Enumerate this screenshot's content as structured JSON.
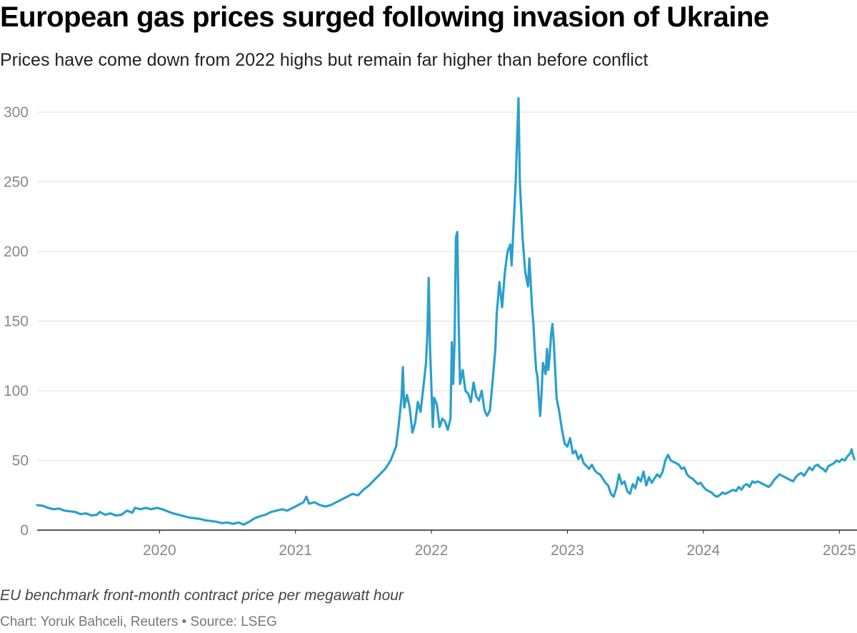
{
  "header": {
    "title": "European gas prices surged following invasion of Ukraine",
    "subtitle": "Prices have come down from 2022 highs but remain far higher than before conflict"
  },
  "footer": {
    "note": "EU benchmark front-month contract price per megawatt hour",
    "credit": "Chart: Yoruk Bahceli, Reuters • Source: LSEG"
  },
  "colors": {
    "line": "#2a9fcd",
    "grid": "#dddddd",
    "axis": "#222222",
    "tick_text": "#888888"
  },
  "chart_data": {
    "type": "line",
    "title": "European gas prices surged following invasion of Ukraine",
    "subtitle": "Prices have come down from 2022 highs but remain far higher than before conflict",
    "xlabel": "",
    "ylabel": "EU benchmark front-month contract price per megawatt hour",
    "x_range": [
      2019.1,
      2025.13
    ],
    "ylim": [
      0,
      300
    ],
    "y_ticks": [
      0,
      50,
      100,
      150,
      200,
      250,
      300
    ],
    "x_ticks": [
      {
        "value": 2020.0,
        "label": "2020"
      },
      {
        "value": 2021.0,
        "label": "2021"
      },
      {
        "value": 2022.0,
        "label": "2022"
      },
      {
        "value": 2023.0,
        "label": "2023"
      },
      {
        "value": 2024.0,
        "label": "2024"
      },
      {
        "value": 2025.0,
        "label": "2025"
      }
    ],
    "grid": true,
    "legend": "none",
    "series": [
      {
        "name": "EU benchmark front-month gas price",
        "points": [
          [
            2019.1,
            18
          ],
          [
            2019.14,
            17.5
          ],
          [
            2019.18,
            16
          ],
          [
            2019.22,
            15
          ],
          [
            2019.26,
            15.5
          ],
          [
            2019.3,
            14
          ],
          [
            2019.34,
            13.5
          ],
          [
            2019.38,
            13
          ],
          [
            2019.42,
            11.5
          ],
          [
            2019.46,
            12
          ],
          [
            2019.5,
            10.5
          ],
          [
            2019.54,
            11
          ],
          [
            2019.56,
            13
          ],
          [
            2019.6,
            11
          ],
          [
            2019.64,
            12
          ],
          [
            2019.68,
            10.5
          ],
          [
            2019.72,
            11
          ],
          [
            2019.76,
            14
          ],
          [
            2019.8,
            12.5
          ],
          [
            2019.82,
            16
          ],
          [
            2019.86,
            15
          ],
          [
            2019.9,
            16
          ],
          [
            2019.94,
            15
          ],
          [
            2019.98,
            16
          ],
          [
            2020.02,
            15
          ],
          [
            2020.06,
            13.5
          ],
          [
            2020.1,
            12
          ],
          [
            2020.14,
            11
          ],
          [
            2020.18,
            10
          ],
          [
            2020.22,
            9
          ],
          [
            2020.26,
            8.5
          ],
          [
            2020.3,
            8
          ],
          [
            2020.34,
            7
          ],
          [
            2020.38,
            6.5
          ],
          [
            2020.42,
            6
          ],
          [
            2020.46,
            5
          ],
          [
            2020.5,
            5.5
          ],
          [
            2020.54,
            4.5
          ],
          [
            2020.58,
            5.5
          ],
          [
            2020.62,
            4
          ],
          [
            2020.66,
            6
          ],
          [
            2020.7,
            8.5
          ],
          [
            2020.74,
            10
          ],
          [
            2020.78,
            11
          ],
          [
            2020.82,
            13
          ],
          [
            2020.86,
            14
          ],
          [
            2020.9,
            15
          ],
          [
            2020.94,
            14
          ],
          [
            2020.98,
            16
          ],
          [
            2021.02,
            18
          ],
          [
            2021.06,
            20
          ],
          [
            2021.08,
            24
          ],
          [
            2021.1,
            19
          ],
          [
            2021.14,
            20
          ],
          [
            2021.18,
            18
          ],
          [
            2021.22,
            17
          ],
          [
            2021.26,
            18
          ],
          [
            2021.3,
            20
          ],
          [
            2021.34,
            22
          ],
          [
            2021.38,
            24
          ],
          [
            2021.42,
            26
          ],
          [
            2021.46,
            25
          ],
          [
            2021.5,
            29
          ],
          [
            2021.54,
            32
          ],
          [
            2021.58,
            36
          ],
          [
            2021.62,
            40
          ],
          [
            2021.66,
            44
          ],
          [
            2021.7,
            50
          ],
          [
            2021.74,
            60
          ],
          [
            2021.76,
            76
          ],
          [
            2021.78,
            95
          ],
          [
            2021.79,
            117
          ],
          [
            2021.8,
            88
          ],
          [
            2021.82,
            97
          ],
          [
            2021.84,
            88
          ],
          [
            2021.86,
            70
          ],
          [
            2021.88,
            77
          ],
          [
            2021.9,
            92
          ],
          [
            2021.92,
            85
          ],
          [
            2021.94,
            102
          ],
          [
            2021.96,
            120
          ],
          [
            2021.97,
            140
          ],
          [
            2021.98,
            181
          ],
          [
            2021.99,
            130
          ],
          [
            2022.0,
            102
          ],
          [
            2022.01,
            74
          ],
          [
            2022.02,
            95
          ],
          [
            2022.04,
            90
          ],
          [
            2022.06,
            74
          ],
          [
            2022.08,
            80
          ],
          [
            2022.1,
            78
          ],
          [
            2022.12,
            72
          ],
          [
            2022.14,
            80
          ],
          [
            2022.15,
            135
          ],
          [
            2022.16,
            105
          ],
          [
            2022.17,
            135
          ],
          [
            2022.18,
            210
          ],
          [
            2022.19,
            214
          ],
          [
            2022.2,
            150
          ],
          [
            2022.21,
            105
          ],
          [
            2022.23,
            115
          ],
          [
            2022.25,
            100
          ],
          [
            2022.27,
            98
          ],
          [
            2022.29,
            92
          ],
          [
            2022.31,
            106
          ],
          [
            2022.33,
            96
          ],
          [
            2022.35,
            93
          ],
          [
            2022.37,
            100
          ],
          [
            2022.39,
            86
          ],
          [
            2022.41,
            82
          ],
          [
            2022.43,
            86
          ],
          [
            2022.45,
            107
          ],
          [
            2022.47,
            130
          ],
          [
            2022.48,
            155
          ],
          [
            2022.5,
            178
          ],
          [
            2022.52,
            160
          ],
          [
            2022.54,
            185
          ],
          [
            2022.56,
            200
          ],
          [
            2022.58,
            205
          ],
          [
            2022.59,
            190
          ],
          [
            2022.61,
            230
          ],
          [
            2022.62,
            250
          ],
          [
            2022.63,
            280
          ],
          [
            2022.64,
            310
          ],
          [
            2022.65,
            250
          ],
          [
            2022.66,
            230
          ],
          [
            2022.67,
            210
          ],
          [
            2022.69,
            185
          ],
          [
            2022.71,
            175
          ],
          [
            2022.72,
            195
          ],
          [
            2022.74,
            160
          ],
          [
            2022.75,
            148
          ],
          [
            2022.76,
            130
          ],
          [
            2022.77,
            115
          ],
          [
            2022.78,
            110
          ],
          [
            2022.79,
            95
          ],
          [
            2022.8,
            82
          ],
          [
            2022.81,
            98
          ],
          [
            2022.82,
            120
          ],
          [
            2022.84,
            112
          ],
          [
            2022.85,
            130
          ],
          [
            2022.86,
            115
          ],
          [
            2022.87,
            125
          ],
          [
            2022.88,
            140
          ],
          [
            2022.89,
            148
          ],
          [
            2022.9,
            135
          ],
          [
            2022.91,
            115
          ],
          [
            2022.92,
            95
          ],
          [
            2022.94,
            85
          ],
          [
            2022.96,
            72
          ],
          [
            2022.98,
            62
          ],
          [
            2023.0,
            60
          ],
          [
            2023.02,
            66
          ],
          [
            2023.04,
            55
          ],
          [
            2023.06,
            57
          ],
          [
            2023.08,
            51
          ],
          [
            2023.1,
            54
          ],
          [
            2023.12,
            48
          ],
          [
            2023.14,
            46
          ],
          [
            2023.16,
            44
          ],
          [
            2023.18,
            47
          ],
          [
            2023.2,
            43
          ],
          [
            2023.22,
            41
          ],
          [
            2023.24,
            40
          ],
          [
            2023.26,
            37
          ],
          [
            2023.28,
            34
          ],
          [
            2023.3,
            32
          ],
          [
            2023.32,
            26
          ],
          [
            2023.34,
            24
          ],
          [
            2023.36,
            30
          ],
          [
            2023.38,
            40
          ],
          [
            2023.4,
            33
          ],
          [
            2023.42,
            35
          ],
          [
            2023.44,
            28
          ],
          [
            2023.46,
            26
          ],
          [
            2023.48,
            33
          ],
          [
            2023.5,
            30
          ],
          [
            2023.52,
            38
          ],
          [
            2023.54,
            35
          ],
          [
            2023.56,
            42
          ],
          [
            2023.58,
            32
          ],
          [
            2023.6,
            38
          ],
          [
            2023.62,
            34
          ],
          [
            2023.64,
            37
          ],
          [
            2023.66,
            40
          ],
          [
            2023.68,
            38
          ],
          [
            2023.7,
            42
          ],
          [
            2023.72,
            50
          ],
          [
            2023.74,
            54
          ],
          [
            2023.76,
            50
          ],
          [
            2023.78,
            49
          ],
          [
            2023.8,
            48
          ],
          [
            2023.82,
            47
          ],
          [
            2023.84,
            44
          ],
          [
            2023.86,
            45
          ],
          [
            2023.88,
            40
          ],
          [
            2023.9,
            38
          ],
          [
            2023.92,
            37
          ],
          [
            2023.94,
            35
          ],
          [
            2023.96,
            33
          ],
          [
            2023.98,
            34
          ],
          [
            2024.0,
            31
          ],
          [
            2024.02,
            29
          ],
          [
            2024.04,
            28
          ],
          [
            2024.06,
            27
          ],
          [
            2024.08,
            25
          ],
          [
            2024.1,
            24
          ],
          [
            2024.12,
            25
          ],
          [
            2024.14,
            27
          ],
          [
            2024.16,
            26
          ],
          [
            2024.18,
            27
          ],
          [
            2024.2,
            28
          ],
          [
            2024.22,
            29
          ],
          [
            2024.24,
            28
          ],
          [
            2024.26,
            31
          ],
          [
            2024.28,
            29
          ],
          [
            2024.3,
            32
          ],
          [
            2024.32,
            33
          ],
          [
            2024.34,
            31
          ],
          [
            2024.36,
            35
          ],
          [
            2024.38,
            34
          ],
          [
            2024.4,
            35
          ],
          [
            2024.42,
            34
          ],
          [
            2024.44,
            33
          ],
          [
            2024.46,
            32
          ],
          [
            2024.48,
            31
          ],
          [
            2024.5,
            33
          ],
          [
            2024.52,
            36
          ],
          [
            2024.54,
            38
          ],
          [
            2024.56,
            40
          ],
          [
            2024.58,
            39
          ],
          [
            2024.6,
            38
          ],
          [
            2024.62,
            37
          ],
          [
            2024.64,
            36
          ],
          [
            2024.66,
            35
          ],
          [
            2024.68,
            38
          ],
          [
            2024.7,
            40
          ],
          [
            2024.72,
            41
          ],
          [
            2024.74,
            39
          ],
          [
            2024.76,
            42
          ],
          [
            2024.78,
            45
          ],
          [
            2024.8,
            43
          ],
          [
            2024.82,
            46
          ],
          [
            2024.84,
            47
          ],
          [
            2024.86,
            45
          ],
          [
            2024.88,
            44
          ],
          [
            2024.9,
            42
          ],
          [
            2024.92,
            46
          ],
          [
            2024.94,
            47
          ],
          [
            2024.96,
            48
          ],
          [
            2024.98,
            50
          ],
          [
            2025.0,
            49
          ],
          [
            2025.02,
            51
          ],
          [
            2025.04,
            50
          ],
          [
            2025.06,
            53
          ],
          [
            2025.08,
            55
          ],
          [
            2025.09,
            58
          ],
          [
            2025.1,
            54
          ],
          [
            2025.11,
            51
          ]
        ]
      }
    ]
  }
}
